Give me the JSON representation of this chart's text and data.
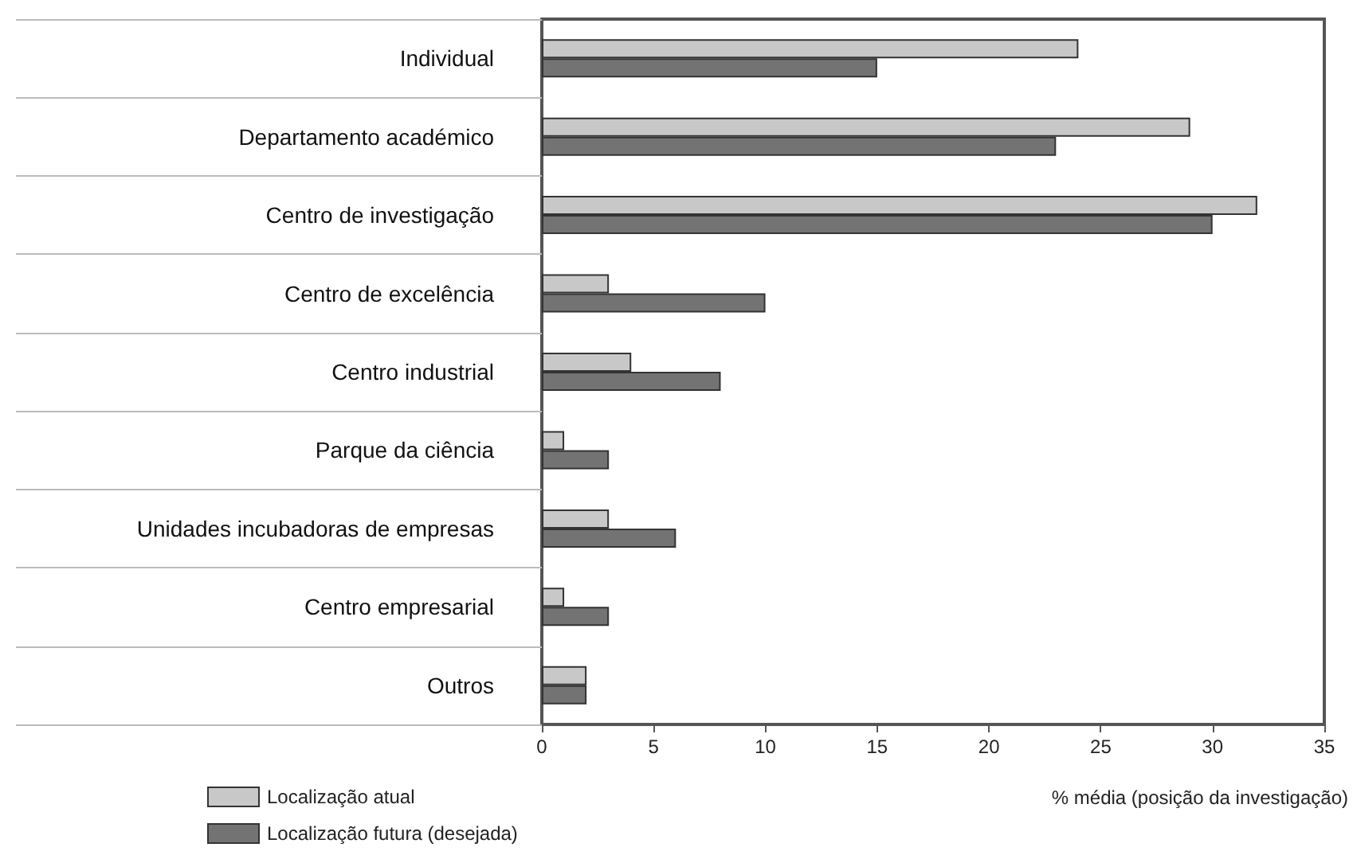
{
  "chart_data": {
    "type": "bar",
    "orientation": "horizontal",
    "xlabel": "% média (posição da investigação)",
    "categories": [
      "Individual",
      "Departamento académico",
      "Centro de investigação",
      "Centro de excelência",
      "Centro industrial",
      "Parque da ciência",
      "Unidades incubadoras de empresas",
      "Centro empresarial",
      "Outros"
    ],
    "series": [
      {
        "name": "Localização atual",
        "color": "#c8c8c8",
        "values": [
          24,
          29,
          32,
          3,
          4,
          1,
          3,
          1,
          2
        ]
      },
      {
        "name": "Localização futura (desejada)",
        "color": "#737373",
        "values": [
          15,
          23,
          30,
          10,
          8,
          3,
          6,
          3,
          2
        ]
      }
    ],
    "xlim": [
      0,
      35
    ],
    "xticks": [
      0,
      5,
      10,
      15,
      20,
      25,
      30,
      35
    ],
    "grid": false,
    "legend": "bottom left"
  }
}
